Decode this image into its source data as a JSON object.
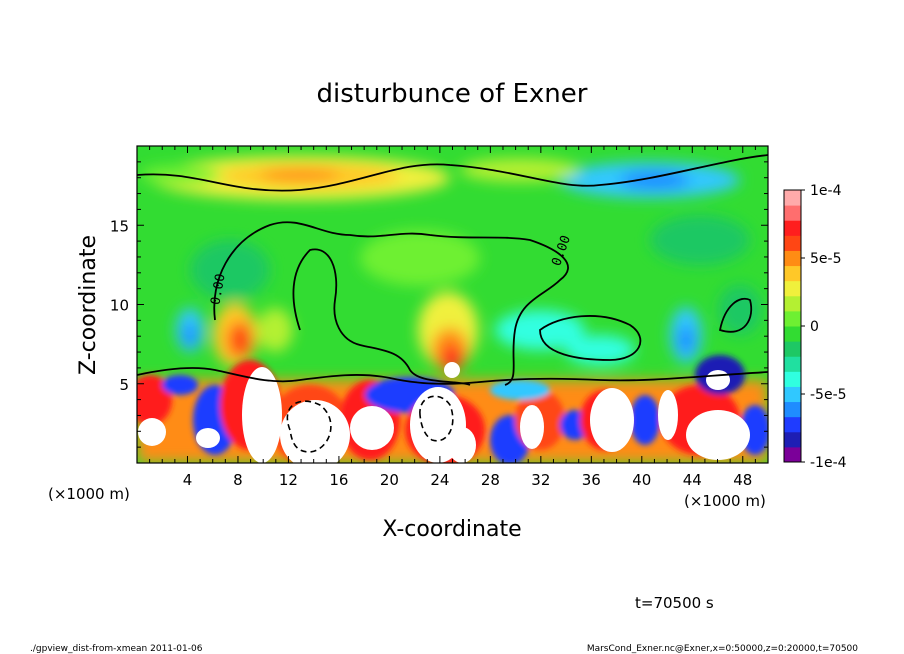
{
  "chart_data": {
    "type": "heatmap",
    "title": "disturbunce of Exner",
    "xlabel": "X-coordinate",
    "ylabel": "Z-coordinate",
    "x_unit": "(×1000 m)",
    "xlim": [
      0,
      50
    ],
    "ylim": [
      0,
      20
    ],
    "x_ticks": [
      4,
      8,
      12,
      16,
      20,
      24,
      28,
      32,
      36,
      40,
      44,
      48
    ],
    "y_ticks": [
      5,
      10,
      15
    ],
    "contour_label": "0.00",
    "colorbar": {
      "range": [
        -0.0001,
        0.0001
      ],
      "tick_labels": [
        "1e-4",
        "5e-5",
        "0",
        "-5e-5",
        "-1e-4"
      ],
      "tick_values": [
        0.0001,
        5e-05,
        0,
        -5e-05,
        -0.0001
      ],
      "colors": [
        "#7b0099",
        "#1e1eb4",
        "#1f3cff",
        "#1f8cff",
        "#30c8ff",
        "#30ffe0",
        "#20e0a0",
        "#1ec864",
        "#32dc32",
        "#6ef032",
        "#b4f032",
        "#f0f03c",
        "#ffc828",
        "#ff8c14",
        "#ff4614",
        "#ff1e1e",
        "#ff6e6e",
        "#ffaaaa"
      ]
    },
    "time_label": "t=70500 s"
  },
  "footer": {
    "left": "./gpview_dist-from-xmean  2011-01-06",
    "right": "MarsCond_Exner.nc@Exner,x=0:50000,z=0:20000,t=70500"
  }
}
